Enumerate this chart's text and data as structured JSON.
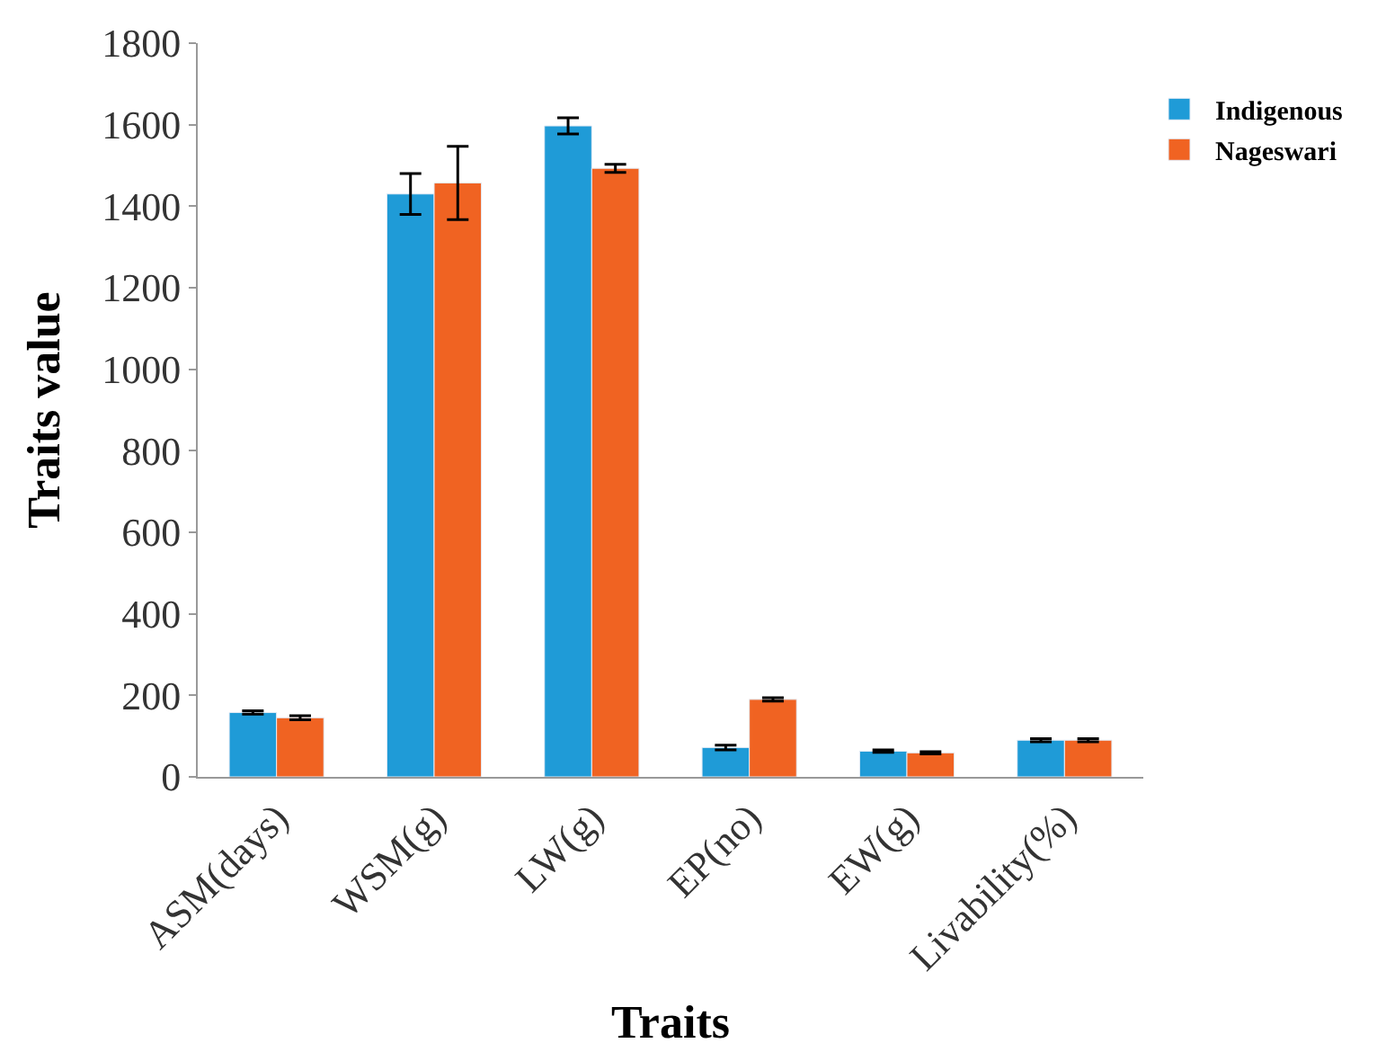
{
  "chart_data": {
    "type": "bar",
    "xlabel": "Traits",
    "ylabel": "Traits value",
    "categories": [
      "ASM(days)",
      "WSM(g)",
      "LW(g)",
      "EP(no)",
      "EW(g)",
      "Livability(%)"
    ],
    "series": [
      {
        "name": "Indigenous",
        "color": "#1f9bd7",
        "values": [
          158,
          1430,
          1597,
          72,
          63,
          90
        ],
        "errors": [
          4,
          50,
          20,
          6,
          3,
          4
        ]
      },
      {
        "name": "Nageswari",
        "color": "#f06322",
        "values": [
          145,
          1457,
          1493,
          190,
          59,
          90
        ],
        "errors": [
          5,
          90,
          10,
          4,
          3,
          4
        ]
      }
    ],
    "ylim": [
      0,
      1800
    ],
    "yticks": [
      0,
      200,
      400,
      600,
      800,
      1000,
      1200,
      1400,
      1600,
      1800
    ],
    "legend": "top right"
  }
}
